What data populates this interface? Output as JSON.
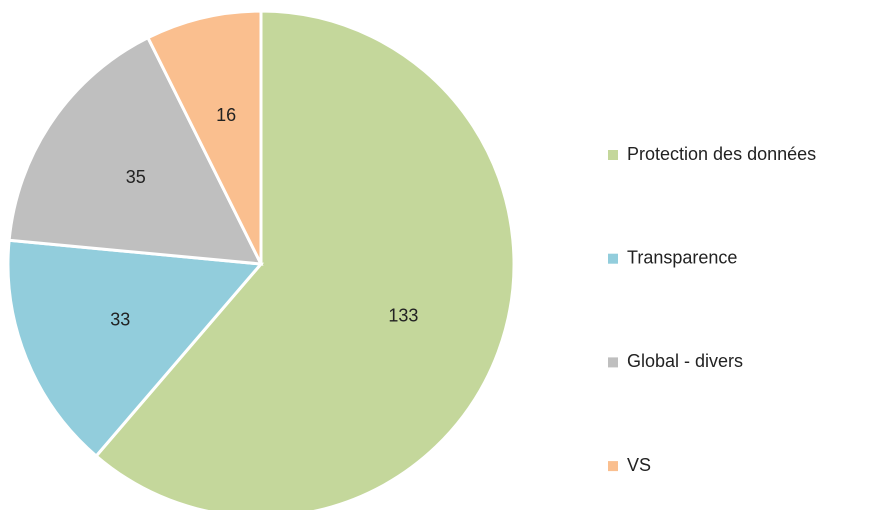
{
  "chart_data": {
    "type": "pie",
    "categories": [
      "Protection des données",
      "Transparence",
      "Global - divers",
      "VS"
    ],
    "values": [
      133,
      33,
      35,
      16
    ],
    "colors": [
      "#c4d79b",
      "#92cddc",
      "#bfbfbf",
      "#fabf8f"
    ],
    "legend": "right"
  }
}
